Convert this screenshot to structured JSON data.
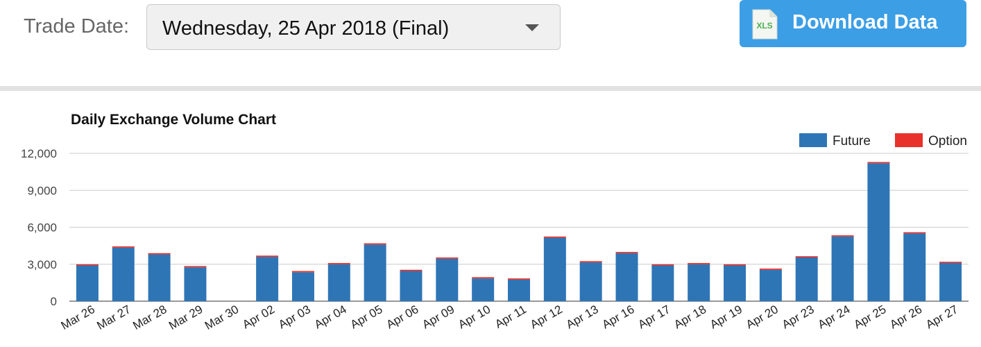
{
  "trade_date": {
    "label": "Trade Date:",
    "selected": "Wednesday, 25 Apr 2018 (Final)"
  },
  "download": {
    "label": "Download Data",
    "icon_text": "XLS"
  },
  "colors": {
    "future": "#2e75b6",
    "option": "#e8312a",
    "button": "#3c9ee5"
  },
  "chart_data": {
    "type": "bar",
    "stacked": true,
    "title": "Daily Exchange Volume Chart",
    "categories": [
      "Mar 26",
      "Mar 27",
      "Mar 28",
      "Mar 29",
      "Mar 30",
      "Apr 02",
      "Apr 03",
      "Apr 04",
      "Apr 05",
      "Apr 06",
      "Apr 09",
      "Apr 10",
      "Apr 11",
      "Apr 12",
      "Apr 13",
      "Apr 16",
      "Apr 17",
      "Apr 18",
      "Apr 19",
      "Apr 20",
      "Apr 23",
      "Apr 24",
      "Apr 25",
      "Apr 26",
      "Apr 27"
    ],
    "series": [
      {
        "name": "Future",
        "values": [
          2900,
          4350,
          3800,
          2750,
          0,
          3600,
          2350,
          3000,
          4600,
          2450,
          3450,
          1850,
          1750,
          5150,
          3150,
          3900,
          2900,
          3000,
          2900,
          2550,
          3550,
          5250,
          11200,
          5500,
          3100
        ]
      },
      {
        "name": "Option",
        "values": [
          100,
          100,
          100,
          100,
          0,
          100,
          100,
          100,
          100,
          100,
          100,
          100,
          100,
          100,
          100,
          100,
          100,
          100,
          100,
          100,
          100,
          100,
          100,
          100,
          100
        ]
      }
    ],
    "ylim": [
      0,
      12000
    ],
    "yticks": [
      0,
      3000,
      6000,
      9000,
      12000
    ],
    "ytick_labels": [
      "0",
      "3,000",
      "6,000",
      "9,000",
      "12,000"
    ],
    "xlabel": "",
    "ylabel": "",
    "legend": "top-right",
    "grid": true
  }
}
